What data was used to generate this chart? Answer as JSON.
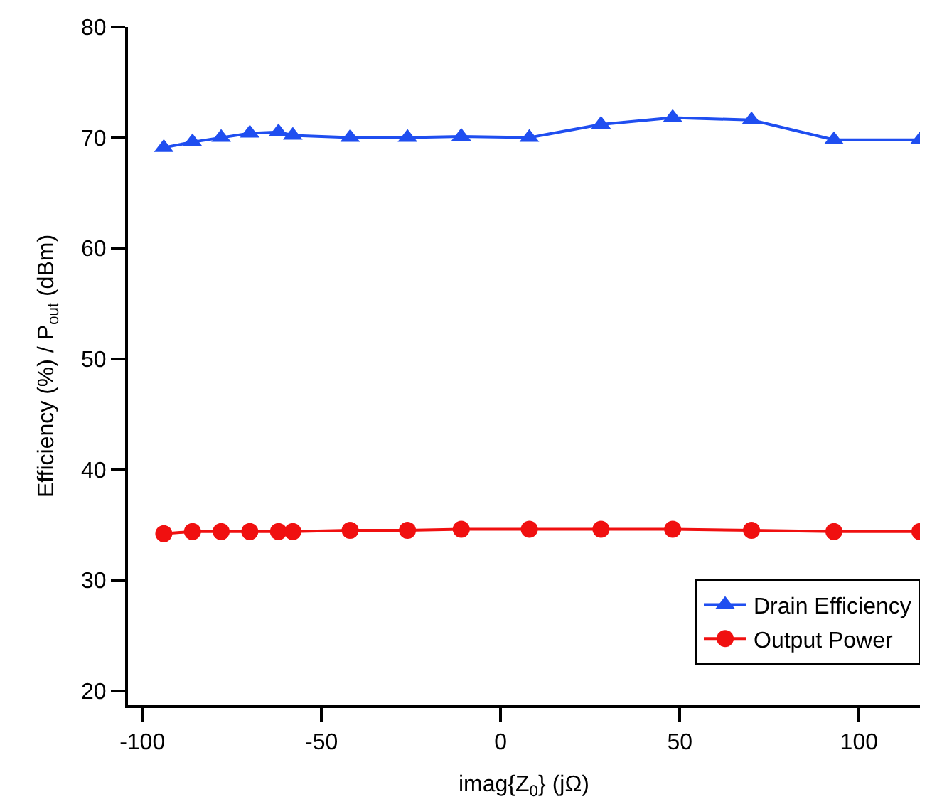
{
  "chart_data": {
    "type": "line",
    "xlabel": "imag{Z$_{0}$} (jΩ)",
    "ylabel": "Efficiency (%) / P$_{out}$ (dBm)",
    "x": [
      -94,
      -86,
      -78,
      -70,
      -62,
      -58,
      -42,
      -26,
      -11,
      8,
      28,
      48,
      70,
      93,
      117
    ],
    "series": [
      {
        "name": "Drain Efficiency",
        "color": "#1f4ef0",
        "marker": "triangle",
        "values": [
          69.1,
          69.6,
          70.0,
          70.4,
          70.5,
          70.2,
          70.0,
          70.0,
          70.1,
          70.0,
          71.2,
          71.8,
          71.6,
          69.8,
          69.8
        ]
      },
      {
        "name": "Output Power",
        "color": "#f01010",
        "marker": "circle",
        "values": [
          34.2,
          34.4,
          34.4,
          34.4,
          34.4,
          34.4,
          34.5,
          34.5,
          34.6,
          34.6,
          34.6,
          34.6,
          34.5,
          34.4,
          34.4
        ]
      }
    ],
    "xlim": [
      -104,
      117
    ],
    "xticks": [
      -100,
      -50,
      0,
      50,
      100
    ],
    "ylim": [
      18.7,
      80
    ],
    "yticks": [
      20,
      30,
      40,
      50,
      60,
      70,
      80
    ],
    "legend": "bottom right"
  }
}
